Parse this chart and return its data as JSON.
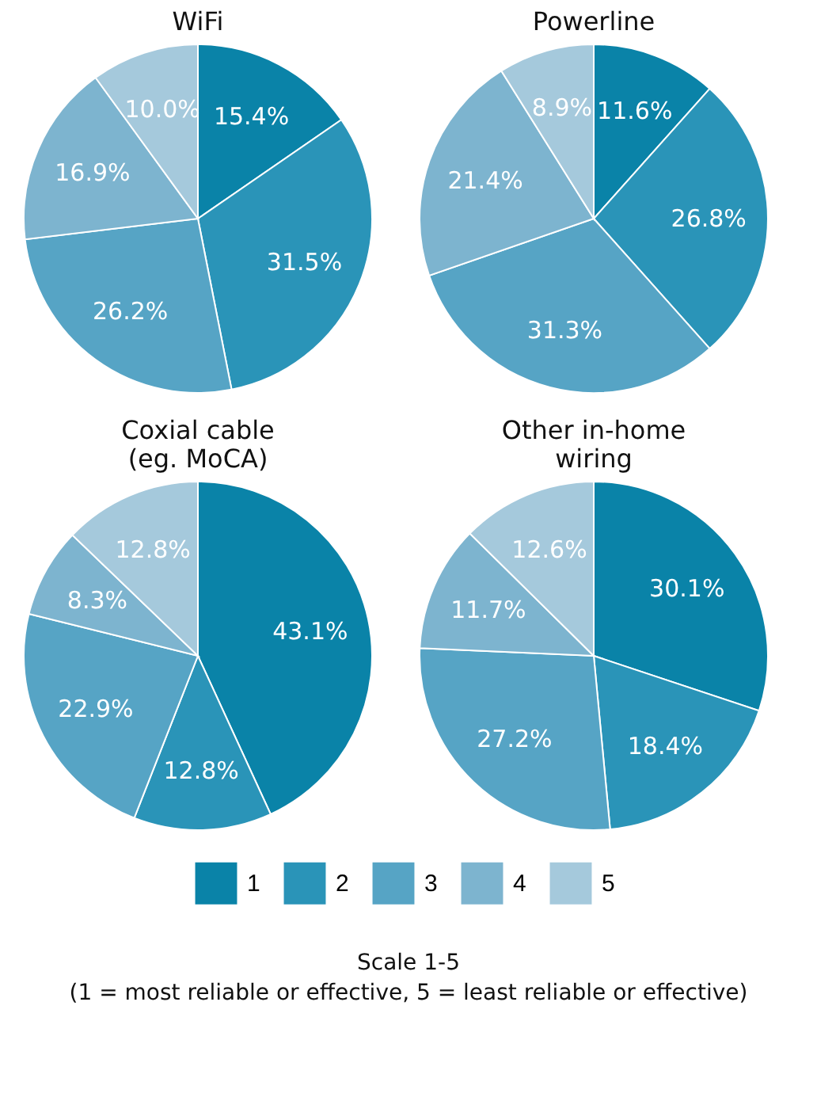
{
  "chart_data": [
    {
      "type": "pie",
      "title": "WiFi",
      "categories": [
        null,
        null,
        null,
        null,
        null
      ],
      "values": [
        15.4,
        31.5,
        26.2,
        16.9,
        10.0
      ],
      "value_labels": [
        "15.4%",
        "31.5%",
        "26.2%",
        "16.9%",
        "10.0%"
      ],
      "colors": [
        "#0a83a8",
        "#2a94b8",
        "#56a4c5",
        "#7db4cf",
        "#a5c9dc"
      ]
    },
    {
      "type": "pie",
      "title": "Powerline",
      "categories": [
        null,
        null,
        null,
        null,
        null
      ],
      "values": [
        11.6,
        26.8,
        31.3,
        21.4,
        8.9
      ],
      "value_labels": [
        "11.6%",
        "26.8%",
        "31.3%",
        "21.4%",
        "8.9%"
      ],
      "colors": [
        "#0a83a8",
        "#2a94b8",
        "#56a4c5",
        "#7db4cf",
        "#a5c9dc"
      ]
    },
    {
      "type": "pie",
      "title": "Coxial cable\n(eg. MoCA)",
      "categories": [
        null,
        null,
        null,
        null,
        null
      ],
      "values": [
        43.1,
        12.8,
        22.9,
        8.3,
        12.8
      ],
      "value_labels": [
        "43.1%",
        "12.8%",
        "22.9%",
        "8.3%",
        "12.8%"
      ],
      "colors": [
        "#0a83a8",
        "#2a94b8",
        "#56a4c5",
        "#7db4cf",
        "#a5c9dc"
      ]
    },
    {
      "type": "pie",
      "title": "Other in-home\nwiring",
      "categories": [
        "1",
        "2",
        "3",
        "4",
        "5"
      ],
      "values": [
        30.1,
        18.4,
        27.2,
        11.7,
        12.6
      ],
      "value_labels": [
        "30.1%",
        "18.4%",
        "27.2%",
        "11.7%",
        "12.6%"
      ],
      "colors": [
        "#0a83a8",
        "#2a94b8",
        "#56a4c5",
        "#7db4cf",
        "#a5c9dc"
      ],
      "legend": "bottom",
      "annotations": [
        "Scale 1-5",
        "(1 = most reliable or effective, 5 = least reliable or effective)"
      ]
    }
  ]
}
